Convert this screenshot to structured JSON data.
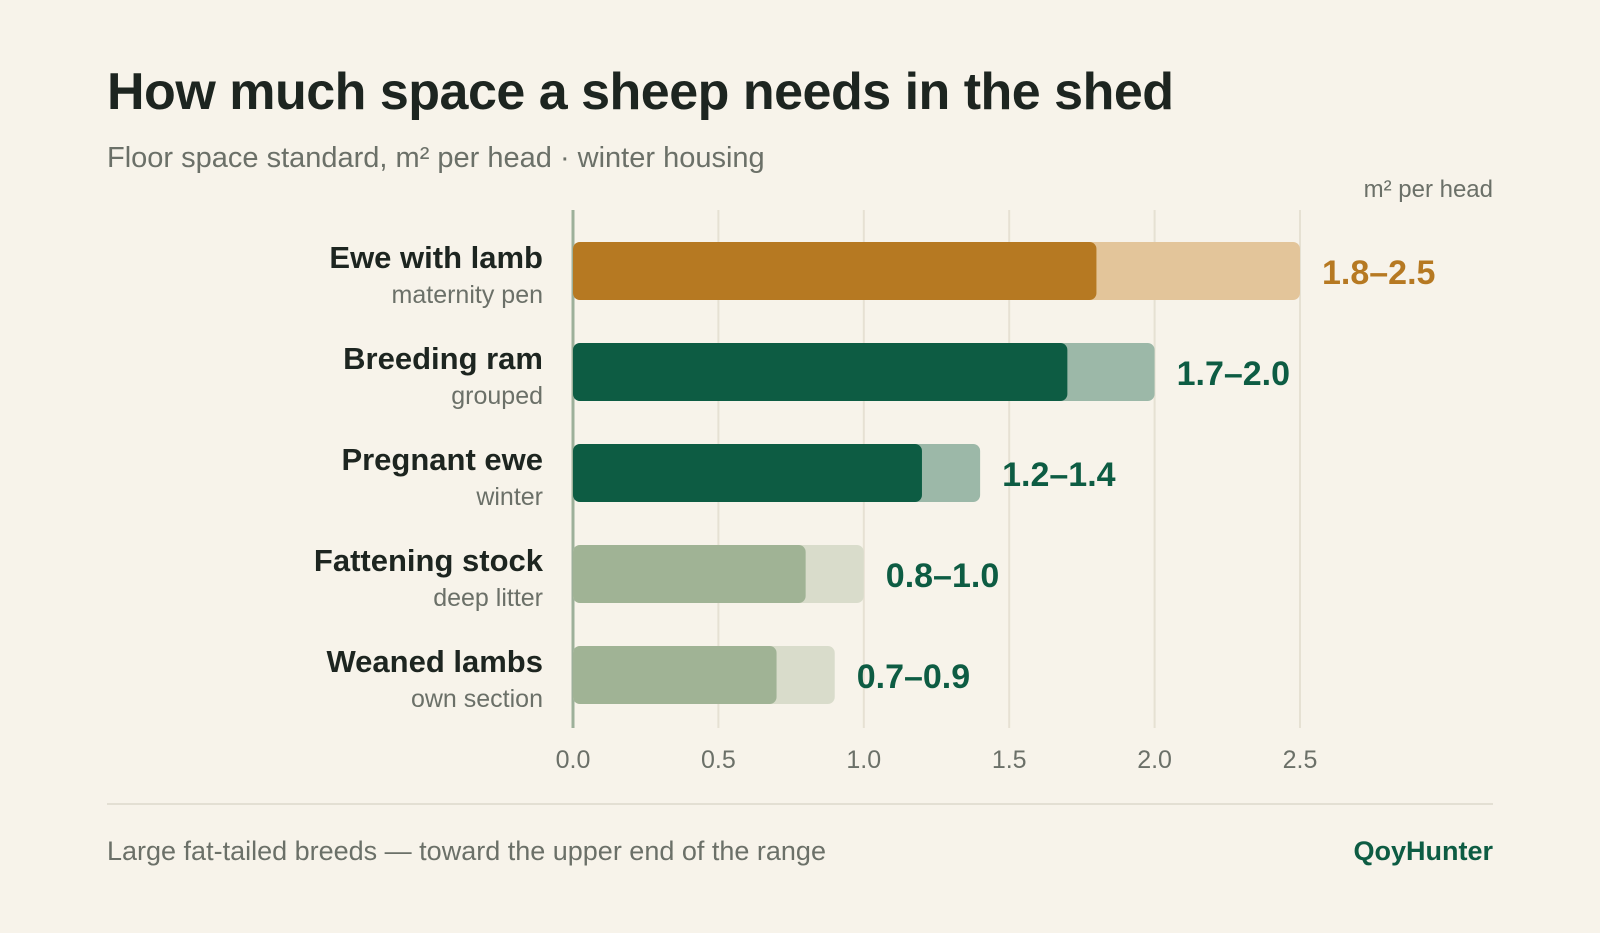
{
  "header": {
    "title": "How much space a sheep needs in the shed",
    "subtitle": "Floor space standard, m² per head · winter housing"
  },
  "footer": {
    "note": "Large fat-tailed breeds — toward the upper end of the range",
    "brand": "QoyHunter"
  },
  "colors": {
    "background": "#f7f3ea",
    "highlight_dark": "#b67922",
    "highlight_light": "#e3c59a",
    "green_dark": "#0d5c43",
    "green_light": "#9cb8a8",
    "sage_dark": "#a0b395",
    "sage_light": "#d9dccb",
    "gridline": "#e6e1d3",
    "axis": "#9db09a",
    "text_dark": "#1d2520",
    "text_muted": "#6b7068"
  },
  "chart_data": {
    "type": "bar",
    "orientation": "horizontal",
    "unit_label": "m² per head",
    "xlim": [
      0,
      2.5
    ],
    "xticks": [
      "0.0",
      "0.5",
      "1.0",
      "1.5",
      "2.0",
      "2.5"
    ],
    "grid": true,
    "categories": [
      {
        "label": "Ewe with lamb",
        "sublabel": "maternity pen",
        "min": 1.8,
        "max": 2.5,
        "range_label": "1.8–2.5",
        "style": "highlight"
      },
      {
        "label": "Breeding ram",
        "sublabel": "grouped",
        "min": 1.7,
        "max": 2.0,
        "range_label": "1.7–2.0",
        "style": "green"
      },
      {
        "label": "Pregnant ewe",
        "sublabel": "winter",
        "min": 1.2,
        "max": 1.4,
        "range_label": "1.2–1.4",
        "style": "green"
      },
      {
        "label": "Fattening stock",
        "sublabel": "deep litter",
        "min": 0.8,
        "max": 1.0,
        "range_label": "0.8–1.0",
        "style": "sage"
      },
      {
        "label": "Weaned lambs",
        "sublabel": "own section",
        "min": 0.7,
        "max": 0.9,
        "range_label": "0.7–0.9",
        "style": "sage"
      }
    ]
  }
}
